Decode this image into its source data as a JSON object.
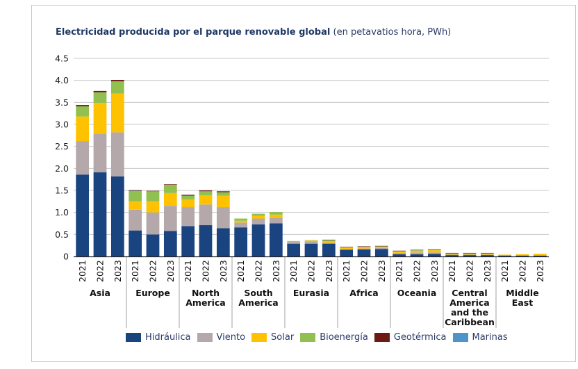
{
  "chart_data": {
    "type": "bar",
    "stacked": true,
    "title": "Electricidad producida por el parque renovable global",
    "subtitle": "(en petavatios hora, PWh)",
    "xlabel": "",
    "ylabel": "",
    "ylim": [
      0,
      4.5
    ],
    "yticks": [
      "0",
      "0.5",
      "1.0",
      "1.5",
      "2.0",
      "2.5",
      "3.0",
      "3.5",
      "4.0",
      "4.5"
    ],
    "ytick_values": [
      0,
      0.5,
      1.0,
      1.5,
      2.0,
      2.5,
      3.0,
      3.5,
      4.0,
      4.5
    ],
    "grid": true,
    "legend_position": "bottom",
    "groups": [
      {
        "name": "Asia",
        "label_lines": [
          "Asia"
        ]
      },
      {
        "name": "Europe",
        "label_lines": [
          "Europe"
        ]
      },
      {
        "name": "North America",
        "label_lines": [
          "North",
          "America"
        ]
      },
      {
        "name": "South America",
        "label_lines": [
          "South",
          "America"
        ]
      },
      {
        "name": "Eurasia",
        "label_lines": [
          "Eurasia"
        ]
      },
      {
        "name": "Africa",
        "label_lines": [
          "Africa"
        ]
      },
      {
        "name": "Oceania",
        "label_lines": [
          "Oceania"
        ]
      },
      {
        "name": "Central America and the Caribbean",
        "label_lines": [
          "Central",
          "America",
          "and the",
          "Caribbean"
        ]
      },
      {
        "name": "Middle East",
        "label_lines": [
          "Middle",
          "East"
        ]
      }
    ],
    "years": [
      "2021",
      "2022",
      "2023"
    ],
    "series": [
      {
        "name": "Hidráulica",
        "color": "#1a4480",
        "values": [
          [
            1.86,
            1.91,
            1.82
          ],
          [
            0.59,
            0.5,
            0.58
          ],
          [
            0.69,
            0.71,
            0.64
          ],
          [
            0.66,
            0.73,
            0.75
          ],
          [
            0.29,
            0.29,
            0.29
          ],
          [
            0.15,
            0.16,
            0.17
          ],
          [
            0.05,
            0.05,
            0.06
          ],
          [
            0.03,
            0.03,
            0.03
          ],
          [
            0.02,
            0.02,
            0.02
          ]
        ]
      },
      {
        "name": "Viento",
        "color": "#b4a8ab",
        "values": [
          [
            0.76,
            0.88,
            1.0
          ],
          [
            0.47,
            0.5,
            0.57
          ],
          [
            0.43,
            0.47,
            0.48
          ],
          [
            0.11,
            0.13,
            0.13
          ],
          [
            0.04,
            0.05,
            0.02
          ],
          [
            0.02,
            0.02,
            0.02
          ],
          [
            0.03,
            0.04,
            0.03
          ],
          [
            0.01,
            0.01,
            0.01
          ],
          [
            0.0,
            0.0,
            0.0
          ]
        ]
      },
      {
        "name": "Solar",
        "color": "#ffc200",
        "values": [
          [
            0.56,
            0.7,
            0.88
          ],
          [
            0.19,
            0.25,
            0.29
          ],
          [
            0.17,
            0.21,
            0.26
          ],
          [
            0.04,
            0.06,
            0.07
          ],
          [
            0.01,
            0.02,
            0.04
          ],
          [
            0.03,
            0.03,
            0.03
          ],
          [
            0.03,
            0.04,
            0.05
          ],
          [
            0.01,
            0.01,
            0.02
          ],
          [
            0.02,
            0.03,
            0.04
          ]
        ]
      },
      {
        "name": "Bioenergía",
        "color": "#92c050",
        "values": [
          [
            0.23,
            0.24,
            0.28
          ],
          [
            0.24,
            0.23,
            0.19
          ],
          [
            0.09,
            0.09,
            0.08
          ],
          [
            0.05,
            0.05,
            0.06
          ],
          [
            0.01,
            0.01,
            0.02
          ],
          [
            0.01,
            0.01,
            0.01
          ],
          [
            0.01,
            0.01,
            0.01
          ],
          [
            0.02,
            0.02,
            0.01
          ],
          [
            0.0,
            0.0,
            0.0
          ]
        ]
      },
      {
        "name": "Geotérmica",
        "color": "#6b1a14",
        "values": [
          [
            0.03,
            0.03,
            0.03
          ],
          [
            0.01,
            0.01,
            0.01
          ],
          [
            0.02,
            0.02,
            0.02
          ],
          [
            0.0,
            0.0,
            0.0
          ],
          [
            0.0,
            0.0,
            0.01
          ],
          [
            0.01,
            0.01,
            0.01
          ],
          [
            0.01,
            0.01,
            0.01
          ],
          [
            0.01,
            0.01,
            0.01
          ],
          [
            0.0,
            0.0,
            0.0
          ]
        ]
      },
      {
        "name": "Marinas",
        "color": "#4e94c8",
        "values": [
          [
            0.0,
            0.0,
            0.0
          ],
          [
            0.01,
            0.0,
            0.0
          ],
          [
            0.0,
            0.0,
            0.0
          ],
          [
            0.0,
            0.0,
            0.0
          ],
          [
            0.0,
            0.0,
            0.0
          ],
          [
            0.0,
            0.0,
            0.0
          ],
          [
            0.0,
            0.0,
            0.0
          ],
          [
            0.0,
            0.0,
            0.0
          ],
          [
            0.0,
            0.0,
            0.0
          ]
        ]
      }
    ]
  },
  "header": {
    "title_bold": "Electricidad producida por el parque renovable global",
    "title_normal": "(en petavatios hora, PWh)"
  }
}
